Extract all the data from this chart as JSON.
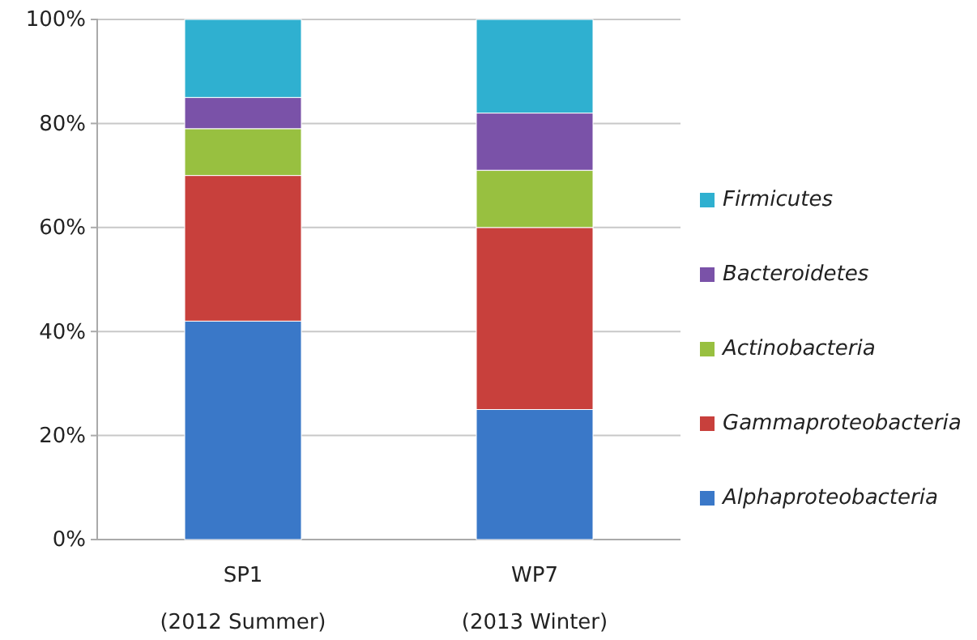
{
  "chart_data": {
    "type": "bar",
    "stacked": true,
    "categories": [
      "SP1\n(2012 Summer)",
      "WP7\n(2013 Winter)"
    ],
    "series": [
      {
        "name": "Alphaproteobacteria",
        "color": "#3a78c8",
        "values": [
          42,
          25
        ]
      },
      {
        "name": "Gammaproteobacteria",
        "color": "#c8403c",
        "values": [
          28,
          35
        ]
      },
      {
        "name": "Actinobacteria",
        "color": "#98c040",
        "values": [
          9,
          11
        ]
      },
      {
        "name": "Bacteroidetes",
        "color": "#7a52a8",
        "values": [
          6,
          11
        ]
      },
      {
        "name": "Firmicutes",
        "color": "#2fb0d0",
        "values": [
          15,
          18
        ]
      }
    ],
    "ylim": [
      0,
      100
    ],
    "yticks": [
      {
        "value": 0,
        "label": "0%"
      },
      {
        "value": 20,
        "label": "20%"
      },
      {
        "value": 40,
        "label": "40%"
      },
      {
        "value": 60,
        "label": "60%"
      },
      {
        "value": 80,
        "label": "80%"
      },
      {
        "value": 100,
        "label": "100%"
      }
    ],
    "grid": "y",
    "legend": "right"
  }
}
